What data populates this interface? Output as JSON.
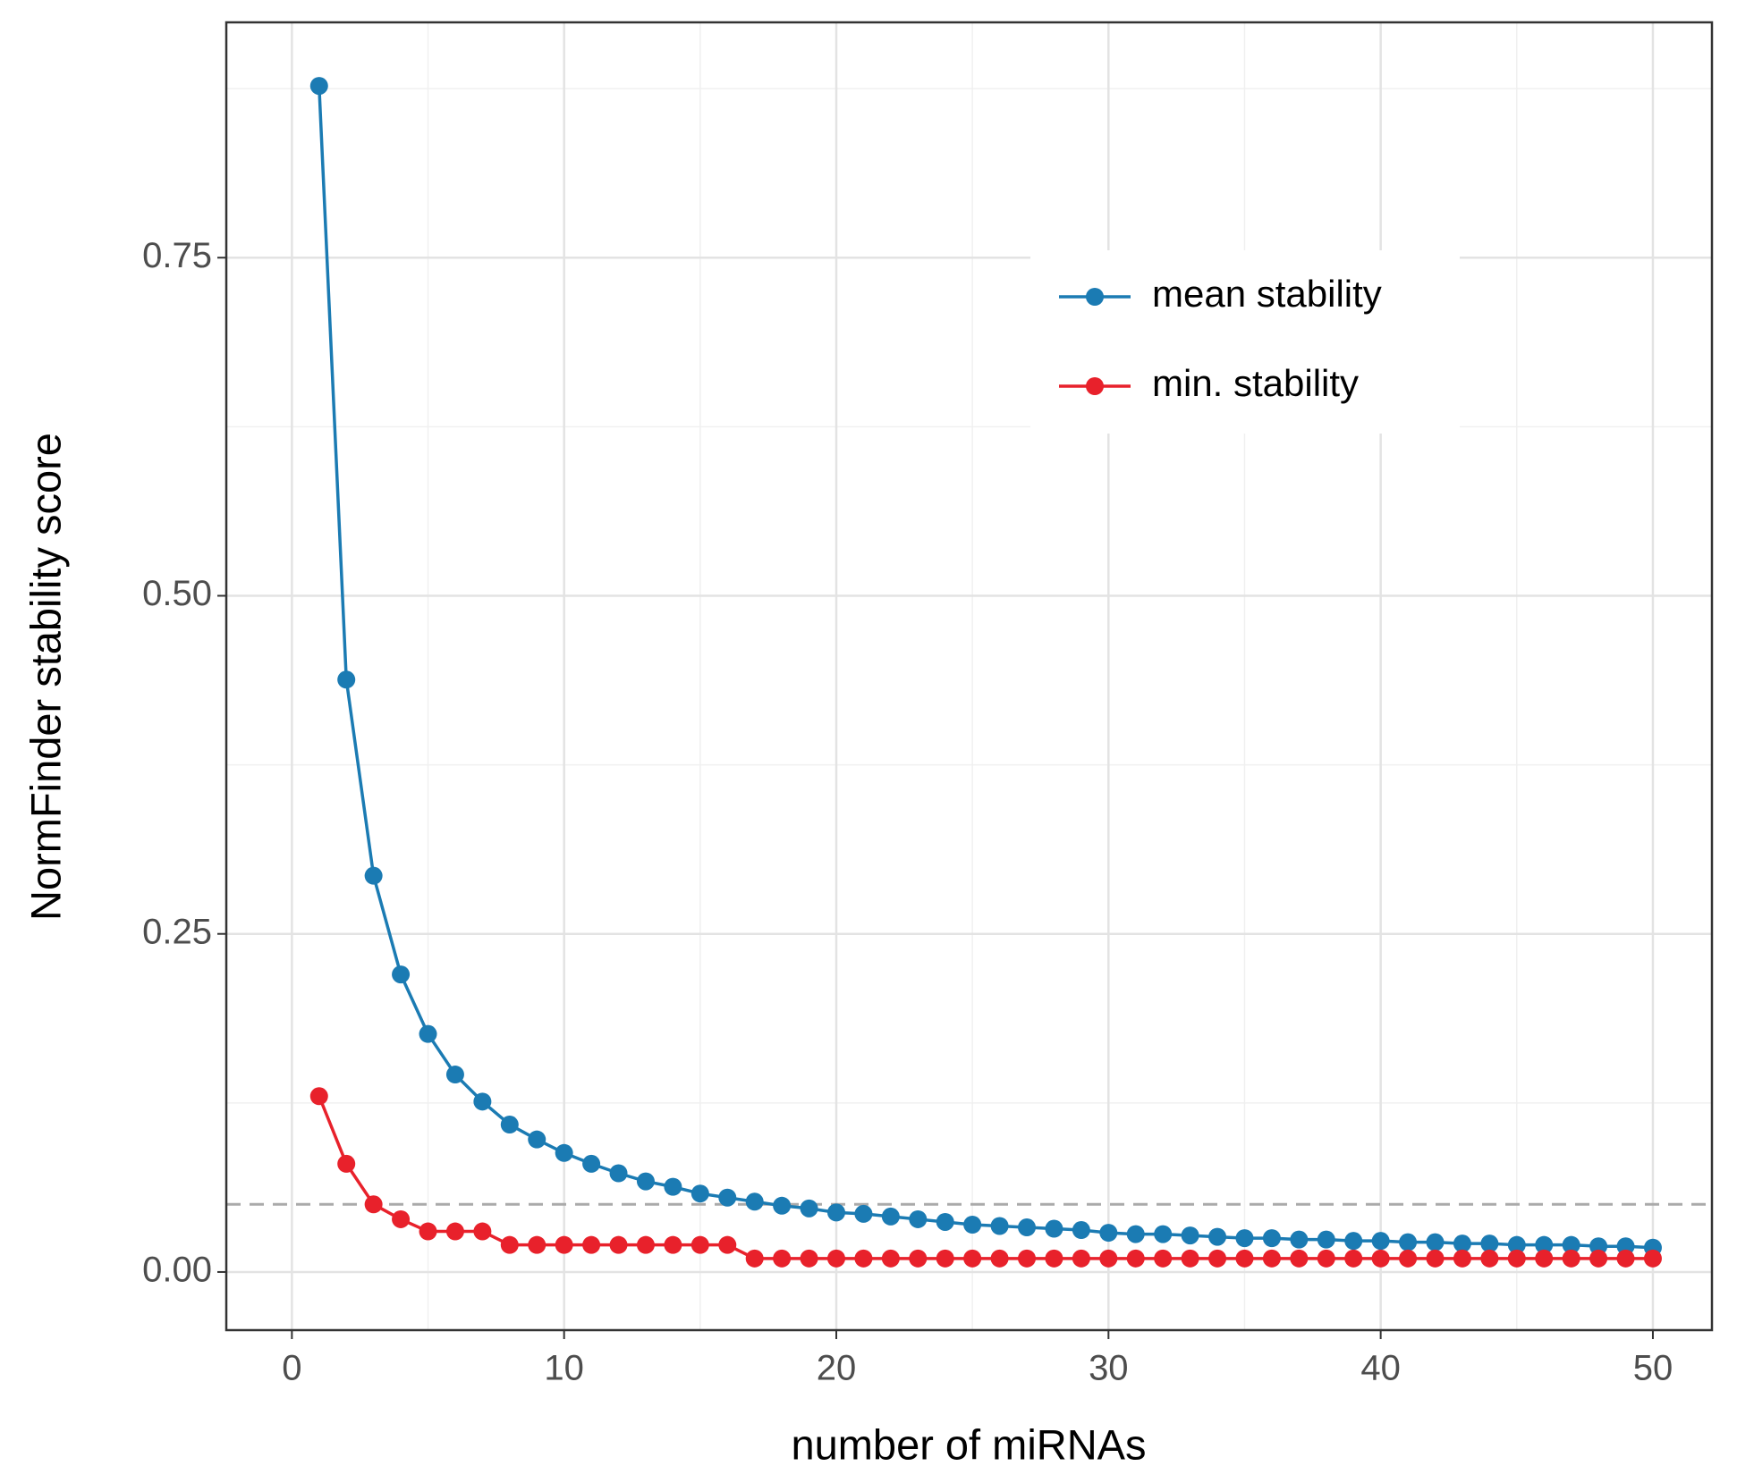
{
  "chart_data": {
    "type": "line",
    "x_label": "number of miRNAs",
    "y_label": "NormFinder stability score",
    "x": [
      1,
      2,
      3,
      4,
      5,
      6,
      7,
      8,
      9,
      10,
      11,
      12,
      13,
      14,
      15,
      16,
      17,
      18,
      19,
      20,
      21,
      22,
      23,
      24,
      25,
      26,
      27,
      28,
      29,
      30,
      31,
      32,
      33,
      34,
      35,
      36,
      37,
      38,
      39,
      40,
      41,
      42,
      43,
      44,
      45,
      46,
      47,
      48,
      49,
      50
    ],
    "series": [
      {
        "name": "mean stability",
        "color": "#1b7bb3",
        "values": [
          0.877,
          0.438,
          0.293,
          0.22,
          0.176,
          0.146,
          0.126,
          0.109,
          0.098,
          0.088,
          0.08,
          0.073,
          0.067,
          0.063,
          0.058,
          0.055,
          0.052,
          0.049,
          0.047,
          0.044,
          0.043,
          0.041,
          0.039,
          0.037,
          0.035,
          0.034,
          0.033,
          0.032,
          0.031,
          0.029,
          0.028,
          0.028,
          0.027,
          0.026,
          0.025,
          0.025,
          0.024,
          0.024,
          0.023,
          0.023,
          0.022,
          0.022,
          0.021,
          0.021,
          0.02,
          0.02,
          0.02,
          0.019,
          0.019,
          0.018
        ]
      },
      {
        "name": "min. stability",
        "color": "#e8212b",
        "values": [
          0.13,
          0.08,
          0.05,
          0.039,
          0.03,
          0.03,
          0.03,
          0.02,
          0.02,
          0.02,
          0.02,
          0.02,
          0.02,
          0.02,
          0.02,
          0.02,
          0.01,
          0.01,
          0.01,
          0.01,
          0.01,
          0.01,
          0.01,
          0.01,
          0.01,
          0.01,
          0.01,
          0.01,
          0.01,
          0.01,
          0.01,
          0.01,
          0.01,
          0.01,
          0.01,
          0.01,
          0.01,
          0.01,
          0.01,
          0.01,
          0.01,
          0.01,
          0.01,
          0.01,
          0.01,
          0.01,
          0.01,
          0.01,
          0.01,
          0.01
        ]
      }
    ],
    "xlim": [
      -2.41,
      52.17
    ],
    "xticks": [
      0,
      10,
      20,
      30,
      40,
      50
    ],
    "ylim": [
      -0.043,
      0.924
    ],
    "yticks": [
      {
        "value": 0,
        "label": "0.00"
      },
      0.25,
      {
        "value": 0.5,
        "label": "0.50"
      },
      0.75
    ],
    "reference_line": 0.05,
    "grid": true,
    "legend_position": "top-right"
  }
}
